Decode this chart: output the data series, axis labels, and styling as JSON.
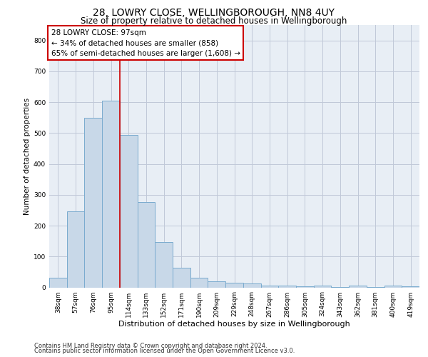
{
  "title": "28, LOWRY CLOSE, WELLINGBOROUGH, NN8 4UY",
  "subtitle": "Size of property relative to detached houses in Wellingborough",
  "xlabel": "Distribution of detached houses by size in Wellingborough",
  "ylabel": "Number of detached properties",
  "categories": [
    "38sqm",
    "57sqm",
    "76sqm",
    "95sqm",
    "114sqm",
    "133sqm",
    "152sqm",
    "171sqm",
    "190sqm",
    "209sqm",
    "229sqm",
    "248sqm",
    "267sqm",
    "286sqm",
    "305sqm",
    "324sqm",
    "343sqm",
    "362sqm",
    "381sqm",
    "400sqm",
    "419sqm"
  ],
  "values": [
    32,
    247,
    549,
    604,
    493,
    277,
    147,
    63,
    31,
    19,
    14,
    12,
    5,
    5,
    4,
    5,
    1,
    6,
    1,
    5,
    4
  ],
  "bar_color": "#c8d8e8",
  "bar_edgecolor": "#7aabcf",
  "bar_linewidth": 0.7,
  "vline_color": "#cc0000",
  "vline_linewidth": 1.2,
  "vline_pos": 3.5,
  "annotation_text": "28 LOWRY CLOSE: 97sqm\n← 34% of detached houses are smaller (858)\n65% of semi-detached houses are larger (1,608) →",
  "annotation_box_edgecolor": "#cc0000",
  "annotation_box_facecolor": "white",
  "annotation_fontsize": 7.5,
  "ylim": [
    0,
    850
  ],
  "yticks": [
    0,
    100,
    200,
    300,
    400,
    500,
    600,
    700,
    800
  ],
  "grid_color": "#c0c8d8",
  "background_color": "#e8eef5",
  "footer_line1": "Contains HM Land Registry data © Crown copyright and database right 2024.",
  "footer_line2": "Contains public sector information licensed under the Open Government Licence v3.0.",
  "title_fontsize": 10,
  "subtitle_fontsize": 8.5,
  "xlabel_fontsize": 8,
  "ylabel_fontsize": 7.5,
  "tick_fontsize": 6.5,
  "footer_fontsize": 6
}
